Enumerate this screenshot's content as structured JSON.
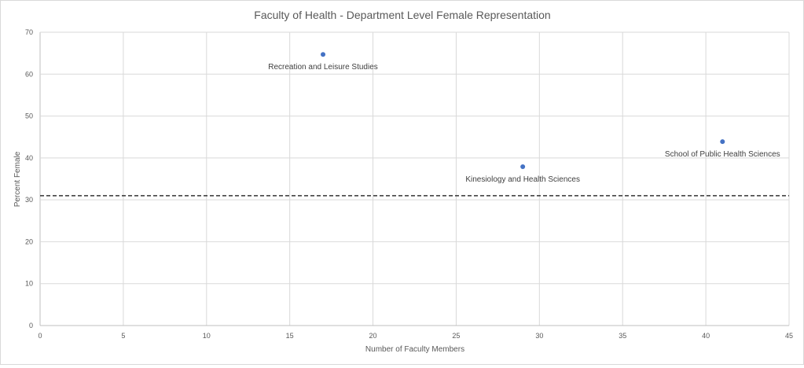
{
  "chart_data": {
    "type": "scatter",
    "title": "Faculty of Health - Department Level Female Representation",
    "xlabel": "Number of Faculty Members",
    "ylabel": "Percent Female",
    "xlim": [
      0,
      45
    ],
    "ylim": [
      0,
      70
    ],
    "x_ticks": [
      0,
      5,
      10,
      15,
      20,
      25,
      30,
      35,
      40,
      45
    ],
    "y_ticks": [
      0,
      10,
      20,
      30,
      40,
      50,
      60,
      70
    ],
    "grid": true,
    "points": [
      {
        "label": "Recreation and Leisure Studies",
        "x": 17,
        "y": 64.7
      },
      {
        "label": "Kinesiology and Health Sciences",
        "x": 29,
        "y": 37.9
      },
      {
        "label": "School of Public Health Sciences",
        "x": 41,
        "y": 43.9
      }
    ],
    "reference_line": {
      "y": 31,
      "style": "dashed"
    },
    "colors": {
      "points": "#4472c4",
      "reference_line": "#333333",
      "grid": "#d9d9d9",
      "text": "#595959"
    }
  }
}
